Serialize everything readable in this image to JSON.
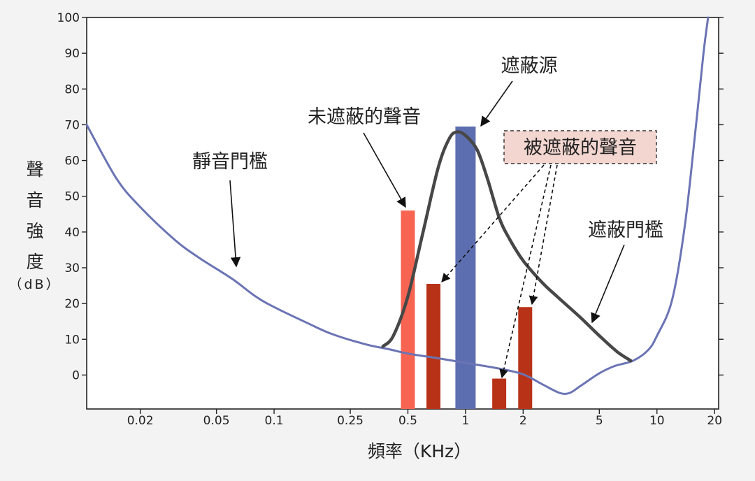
{
  "chart_data": {
    "type": "line",
    "xscale": "log",
    "xlim": [
      0.0105,
      21
    ],
    "ylim": [
      -9.5,
      100
    ],
    "grid": false,
    "xlabel": "頻率（KHz）",
    "ylabel_chars": [
      "聲",
      "音",
      "強",
      "度"
    ],
    "ylabel_unit": "（dB）",
    "xticks": [
      {
        "v": 0.02,
        "label": "0.02"
      },
      {
        "v": 0.05,
        "label": "0.05"
      },
      {
        "v": 0.1,
        "label": "0.1"
      },
      {
        "v": 0.25,
        "label": "0.25"
      },
      {
        "v": 0.5,
        "label": "0.5"
      },
      {
        "v": 1,
        "label": "1"
      },
      {
        "v": 2,
        "label": "2"
      },
      {
        "v": 5,
        "label": "5"
      },
      {
        "v": 10,
        "label": "10"
      },
      {
        "v": 20,
        "label": "20"
      }
    ],
    "yticks": [
      0,
      10,
      20,
      30,
      40,
      50,
      60,
      70,
      80,
      90,
      100
    ],
    "series": [
      {
        "name": "靜音門檻",
        "color": "#6b74b4",
        "points": [
          [
            0.0105,
            70
          ],
          [
            0.015,
            55
          ],
          [
            0.02,
            47
          ],
          [
            0.03,
            38
          ],
          [
            0.04,
            33
          ],
          [
            0.06,
            27
          ],
          [
            0.08,
            22
          ],
          [
            0.1,
            19
          ],
          [
            0.15,
            14.5
          ],
          [
            0.2,
            11.5
          ],
          [
            0.3,
            8.6
          ],
          [
            0.4,
            7.2
          ],
          [
            0.5,
            6
          ],
          [
            0.7,
            4.8
          ],
          [
            1,
            3.4
          ],
          [
            1.5,
            1.8
          ],
          [
            2,
            0.2
          ],
          [
            2.5,
            -2.5
          ],
          [
            3.1,
            -5
          ],
          [
            3.5,
            -5
          ],
          [
            4,
            -3
          ],
          [
            5,
            0.5
          ],
          [
            6,
            2.5
          ],
          [
            7.5,
            4
          ],
          [
            9,
            7
          ],
          [
            10,
            11
          ],
          [
            12,
            21
          ],
          [
            14,
            42
          ],
          [
            16,
            70
          ],
          [
            17.5,
            90
          ],
          [
            18.5,
            100
          ]
        ]
      },
      {
        "name": "遮蔽門檻",
        "color": "#474747",
        "points": [
          [
            0.37,
            8
          ],
          [
            0.42,
            11
          ],
          [
            0.5,
            22
          ],
          [
            0.6,
            40
          ],
          [
            0.72,
            58
          ],
          [
            0.82,
            66
          ],
          [
            0.9,
            68
          ],
          [
            1,
            67
          ],
          [
            1.15,
            63
          ],
          [
            1.3,
            55
          ],
          [
            1.5,
            44
          ],
          [
            1.7,
            38
          ],
          [
            2,
            32
          ],
          [
            2.5,
            26
          ],
          [
            3,
            22
          ],
          [
            4,
            16
          ],
          [
            5,
            11
          ],
          [
            6.2,
            6.5
          ],
          [
            7.3,
            4
          ]
        ]
      }
    ],
    "bars": [
      {
        "x": 0.5,
        "value": 46,
        "color": "#f76552",
        "label": "未遮蔽的聲音"
      },
      {
        "x": 0.68,
        "value": 25.5,
        "color": "#b83218",
        "label": "被遮蔽的聲音"
      },
      {
        "x": 1,
        "value": 69.5,
        "color": "#5c6eb0",
        "label": "遮蔽源"
      },
      {
        "x": 1.5,
        "value": -1,
        "color": "#b83218",
        "label": "被遮蔽的聲音"
      },
      {
        "x": 2.05,
        "value": 19,
        "color": "#b83218",
        "label": "被遮蔽的聲音"
      }
    ],
    "annotations": [
      {
        "text": "遮蔽源",
        "boxed": false
      },
      {
        "text": "未遮蔽的聲音",
        "boxed": false
      },
      {
        "text": "被遮蔽的聲音",
        "boxed": true,
        "fill": "#f3d6d0"
      },
      {
        "text": "靜音門檻",
        "boxed": false
      },
      {
        "text": "遮蔽門檻",
        "boxed": false
      }
    ]
  }
}
